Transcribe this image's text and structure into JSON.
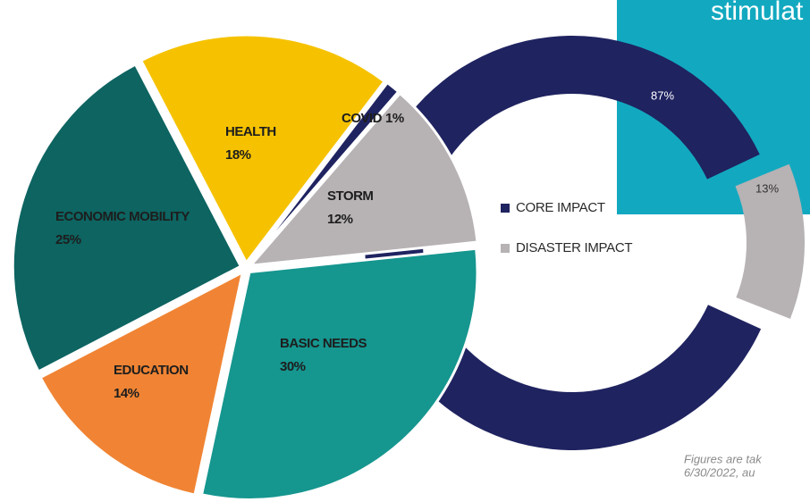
{
  "banner_text": "stimulat",
  "footnote": [
    "Figures are tak",
    "6/30/2022, au"
  ],
  "chart_data": [
    {
      "type": "pie",
      "categories": [
        "HEALTH",
        "COVID",
        "STORM",
        "BASIC NEEDS",
        "EDUCATION",
        "ECONOMIC MOBILITY"
      ],
      "values": [
        18,
        1,
        12,
        30,
        14,
        25
      ],
      "value_labels": [
        "18%",
        "1%",
        "12%",
        "30%",
        "14%",
        "25%"
      ],
      "colors": [
        "#f6c200",
        "#1f2360",
        "#b7b2b4",
        "#15968f",
        "#f08434",
        "#0d6461"
      ]
    },
    {
      "type": "donut",
      "categories": [
        "CORE IMPACT",
        "DISASTER IMPACT"
      ],
      "values": [
        87,
        13
      ],
      "value_labels": [
        "87%",
        "13%"
      ],
      "colors": [
        "#1f2360",
        "#b7b2b4"
      ],
      "legend": "center-left"
    }
  ]
}
